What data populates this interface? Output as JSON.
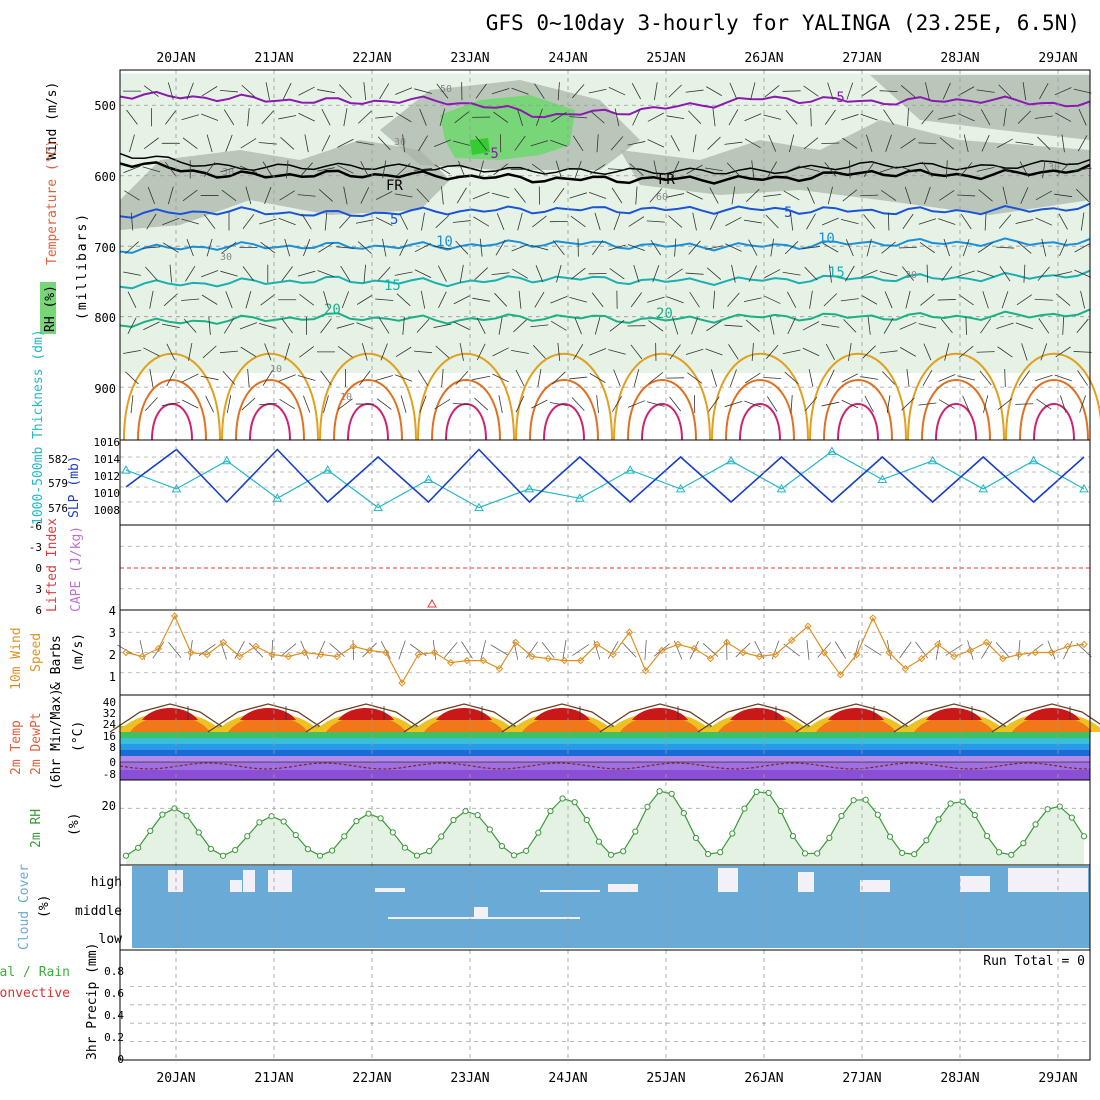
{
  "title": "GFS 0~10day 3-hourly for YALINGA (23.25E, 6.5N)",
  "dates": [
    "20JAN",
    "21JAN",
    "22JAN",
    "23JAN",
    "24JAN",
    "25JAN",
    "26JAN",
    "27JAN",
    "28JAN",
    "29JAN"
  ],
  "colors": {
    "temperature": "#e0603a",
    "wind": "#000000",
    "rh_fill": "#78d678",
    "rh_dark": "#9aa89a",
    "slp": "#1a3fc8",
    "thickness": "#22b8c8",
    "lifted": "#e03a3a",
    "cape": "#c070d0",
    "wind10": "#e09020",
    "rh2m": "#3a9a3a",
    "cloud": "#6aaad6",
    "precip_total": "#3ab03a",
    "precip_conv": "#e03030"
  },
  "panels": {
    "upper": {
      "label_rh": "RH (%)",
      "label_temp": "Temperature (°C)",
      "label_wind": "Wind (m/s)",
      "label_units": "(millibars)",
      "yticks": [
        "500",
        "600",
        "700",
        "800",
        "900"
      ],
      "isotherm_labels": [
        "-5",
        "-5",
        "5",
        "5",
        "10",
        "10",
        "15",
        "15",
        "20",
        "20",
        "FR",
        "FR"
      ],
      "rh_labels": [
        "50",
        "30",
        "30",
        "60",
        "30",
        "10",
        "10",
        "30",
        "30"
      ]
    },
    "pressure": {
      "label_thick": "1000-500mb Thickness (dm)",
      "label_slp": "SLP (mb)",
      "thick_ticks": [
        "582",
        "579",
        "576"
      ],
      "slp_ticks": [
        "1016",
        "1014",
        "1012",
        "1010",
        "1008"
      ]
    },
    "cape": {
      "label_li": "Lifted Index",
      "label_cape": "CAPE (J/kg)",
      "yticks": [
        "-6",
        "-3",
        "0",
        "3",
        "6"
      ]
    },
    "wind10": {
      "label1": "10m Wind",
      "label2": "Speed",
      "label3": "& Barbs",
      "units": "(m/s)",
      "yticks": [
        "4",
        "3",
        "2",
        "1"
      ]
    },
    "temp2m": {
      "label1": "2m Temp",
      "label2": "2m DewPt",
      "label3": "(6hr Min/Max)",
      "units": "(°C)",
      "yticks": [
        "40",
        "32",
        "24",
        "16",
        "8",
        "0",
        "-8"
      ]
    },
    "rh2m": {
      "label": "2m RH",
      "units": "(%)",
      "yticks": [
        "20"
      ]
    },
    "cloud": {
      "label": "Cloud Cover",
      "units": "(%)",
      "levels": [
        "high",
        "middle",
        "low"
      ]
    },
    "precip": {
      "label_total": "Total / Rain",
      "label_conv": "Convective",
      "label_units": "3hr Precip (mm)",
      "run_total": "Run Total = 0",
      "yticks": [
        "0.8",
        "0.6",
        "0.4",
        "0.2",
        "0"
      ]
    }
  },
  "chart_data": [
    {
      "type": "line",
      "title": "GFS 0~10day 3-hourly for YALINGA (23.25E, 6.5N)",
      "x": [
        "20JAN",
        "21JAN",
        "22JAN",
        "23JAN",
        "24JAN",
        "25JAN",
        "26JAN",
        "27JAN",
        "28JAN",
        "29JAN"
      ],
      "ylabel": "(millibars)",
      "ylim": [
        450,
        975
      ],
      "series": [
        {
          "name": "-5",
          "values": [
            485,
            490,
            495,
            493,
            515,
            505,
            490,
            495,
            492,
            500
          ]
        },
        {
          "name": "FR",
          "values": [
            580,
            600,
            598,
            600,
            605,
            605,
            605,
            595,
            600,
            590
          ]
        },
        {
          "name": "5",
          "values": [
            655,
            650,
            655,
            650,
            648,
            648,
            648,
            650,
            650,
            645
          ]
        },
        {
          "name": "10",
          "values": [
            705,
            700,
            700,
            700,
            695,
            700,
            700,
            695,
            695,
            695
          ]
        },
        {
          "name": "15",
          "values": [
            755,
            752,
            748,
            752,
            745,
            750,
            748,
            745,
            745,
            740
          ]
        },
        {
          "name": "20",
          "values": [
            810,
            805,
            800,
            805,
            800,
            805,
            800,
            800,
            800,
            795
          ]
        }
      ]
    },
    {
      "type": "line",
      "ylabel": "SLP (mb)",
      "ylim": [
        1006,
        1016
      ],
      "series": [
        {
          "name": "SLP (mb)",
          "values": [
            1010,
            1015,
            1008,
            1015,
            1008,
            1014,
            1008,
            1015,
            1008,
            1014,
            1008,
            1014,
            1008,
            1014,
            1008,
            1014,
            1008,
            1014,
            1008,
            1014
          ]
        },
        {
          "name": "1000-500mb Thickness (dm)",
          "values": [
            580,
            578,
            581,
            577,
            580,
            576,
            579,
            576,
            578,
            577,
            580,
            578,
            581,
            578,
            582,
            579,
            581,
            578,
            581,
            578
          ]
        }
      ]
    },
    {
      "type": "line",
      "ylabel": "10m Wind Speed & Barbs (m/s)",
      "ylim": [
        0,
        4
      ],
      "values": [
        2.0,
        1.8,
        2.2,
        3.8,
        2.0,
        1.9,
        2.5,
        1.8,
        2.3,
        1.9,
        1.8,
        2.0,
        1.9,
        1.8,
        2.3,
        2.1,
        2.0,
        0.5,
        1.9,
        2.0,
        1.5,
        1.6,
        1.6,
        1.2,
        2.5,
        1.8,
        1.7,
        1.6,
        1.6,
        2.4,
        1.9,
        3.0,
        1.1,
        2.1,
        2.4,
        2.2,
        1.7,
        2.5,
        2.0,
        1.8,
        1.9,
        2.6,
        3.3,
        2.0,
        0.9,
        1.9,
        3.7,
        2.0,
        1.2,
        1.7,
        2.4,
        1.8,
        2.1,
        2.5,
        1.7,
        1.9,
        2.0,
        2.0,
        2.3,
        2.4
      ]
    },
    {
      "type": "area",
      "ylabel": "2m RH (%)",
      "ylim": [
        0,
        30
      ],
      "values": [
        5,
        20,
        19,
        5,
        17,
        17,
        5,
        18,
        17,
        5,
        19,
        20,
        5,
        22,
        24,
        5,
        24,
        27,
        5,
        25,
        27,
        5,
        23,
        23,
        5,
        22,
        24,
        5,
        20,
        21
      ]
    },
    {
      "type": "bar",
      "ylabel": "3hr Precip (mm)",
      "ylim": [
        0,
        1
      ],
      "values": [
        0,
        0,
        0,
        0,
        0,
        0,
        0,
        0,
        0,
        0
      ]
    }
  ]
}
